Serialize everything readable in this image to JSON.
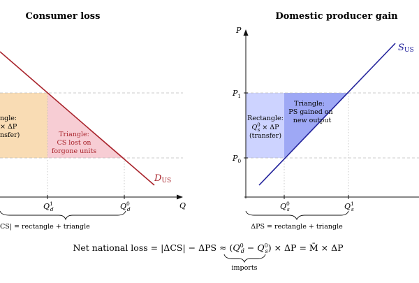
{
  "colors": {
    "demand": "#a8232b",
    "supply": "#24249c",
    "rect_left": "#f9dcb4",
    "tri_left": "#f7cdd4",
    "rect_right": "#cdd3ff",
    "tri_right": "#9ea8f5",
    "axis": "#111111",
    "guide": "#bbbbbb"
  },
  "left": {
    "title": "Consumer loss",
    "axis_q": "Q",
    "demand_label": "D",
    "demand_sub": "US",
    "tick_qd1": "Q",
    "tick_qd1_sup": "1",
    "tick_qd1_sub": "d",
    "tick_qd0": "Q",
    "tick_qd0_sup": "0",
    "tick_qd0_sub": "d",
    "rect_line1": "ngle:",
    "rect_line2": "× ΔP",
    "rect_line3": "nsfer)",
    "tri_line1": "Triangle:",
    "tri_line2": "CS lost on",
    "tri_line3": "forgone units",
    "brace_text": "CS| = rectangle + triangle"
  },
  "right": {
    "title": "Domestic producer gain",
    "axis_p": "P",
    "p1": "P",
    "p1_sub": "1",
    "p0": "P",
    "p0_sub": "0",
    "supply_label": "S",
    "supply_sub": "US",
    "tick_qs0": "Q",
    "tick_qs0_sup": "0",
    "tick_qs0_sub": "s",
    "tick_qs1": "Q",
    "tick_qs1_sup": "1",
    "tick_qs1_sub": "s",
    "rect_line1": "Rectangle:",
    "rect_line2": "Q",
    "rect_line2_sup": "0",
    "rect_line2_sub": "s",
    "rect_line2_rest": " × ΔP",
    "rect_line3": "(transfer)",
    "tri_line1": "Triangle:",
    "tri_line2": "PS gained on",
    "tri_line3": "new output",
    "brace_text": "ΔPS = rectangle + triangle"
  },
  "bottom": {
    "eq_start": "Net national loss = |ΔCS| − ΔPS ≈ (",
    "eq_qd0": "Q",
    "eq_qd0_sup": "0",
    "eq_qd0_sub": "d",
    "eq_minus": " − ",
    "eq_qs0": "Q",
    "eq_qs0_sup": "0",
    "eq_qs0_sub": "s",
    "eq_end": ") × ΔP = M̄ × ΔP",
    "imports_label": "imports"
  }
}
